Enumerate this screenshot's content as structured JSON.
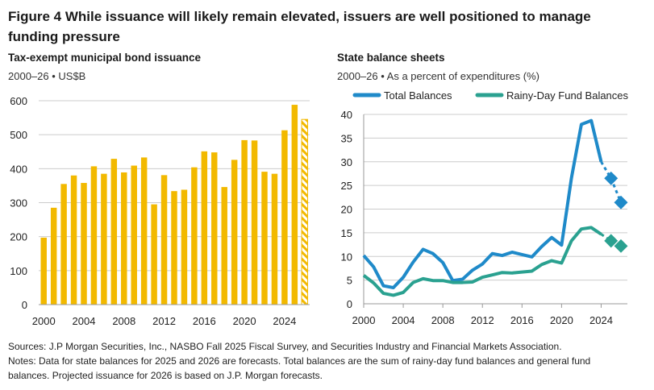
{
  "title": "Figure 4   While issuance will likely remain elevated, issuers are well positioned to manage funding pressure",
  "left": {
    "title": "Tax-exempt municipal bond issuance",
    "subtitle": "2000–26 • US$B"
  },
  "right": {
    "title": "State balance sheets",
    "subtitle": "2000–26 • As a percent of expenditures (%)"
  },
  "chart_data": [
    {
      "type": "bar",
      "years": [
        2000,
        2001,
        2002,
        2003,
        2004,
        2005,
        2006,
        2007,
        2008,
        2009,
        2010,
        2011,
        2012,
        2013,
        2014,
        2015,
        2016,
        2017,
        2018,
        2019,
        2020,
        2021,
        2022,
        2023,
        2024,
        2025,
        2026
      ],
      "values": [
        197,
        285,
        355,
        380,
        358,
        407,
        385,
        429,
        389,
        409,
        433,
        295,
        381,
        334,
        338,
        404,
        451,
        448,
        346,
        426,
        484,
        483,
        391,
        385,
        513,
        588,
        545
      ],
      "forecast_years": [
        2026
      ],
      "ylim": [
        0,
        600
      ],
      "yticks": [
        0,
        100,
        200,
        300,
        400,
        500,
        600
      ],
      "xticks": [
        2000,
        2004,
        2008,
        2012,
        2016,
        2020,
        2024
      ],
      "color": "#f2b900",
      "grid": true
    },
    {
      "type": "line",
      "x": [
        2000,
        2001,
        2002,
        2003,
        2004,
        2005,
        2006,
        2007,
        2008,
        2009,
        2010,
        2011,
        2012,
        2013,
        2014,
        2015,
        2016,
        2017,
        2018,
        2019,
        2020,
        2021,
        2022,
        2023,
        2024,
        2025,
        2026
      ],
      "series": [
        {
          "name": "Total Balances",
          "color": "#1f8ac9",
          "values": [
            10.2,
            7.8,
            3.8,
            3.4,
            5.6,
            8.8,
            11.5,
            10.6,
            8.7,
            4.9,
            5.2,
            7.1,
            8.4,
            10.6,
            10.2,
            10.9,
            10.4,
            9.9,
            12.1,
            14.0,
            12.4,
            26.6,
            37.9,
            38.7,
            30.0,
            26.5,
            21.4
          ]
        },
        {
          "name": "Rainy-Day Fund Balances",
          "color": "#2aa190",
          "values": [
            6.0,
            4.4,
            2.2,
            1.8,
            2.4,
            4.5,
            5.3,
            4.9,
            4.9,
            4.5,
            4.5,
            4.6,
            5.6,
            6.1,
            6.6,
            6.5,
            6.7,
            6.9,
            8.3,
            9.1,
            8.6,
            13.3,
            15.8,
            16.1,
            14.7,
            13.3,
            12.2
          ]
        }
      ],
      "forecast_years": [
        2025,
        2026
      ],
      "ylim": [
        0,
        40
      ],
      "yticks": [
        0,
        5,
        10,
        15,
        20,
        25,
        30,
        35,
        40
      ],
      "xticks": [
        2000,
        2004,
        2008,
        2012,
        2016,
        2020,
        2024
      ],
      "grid": true,
      "legend": "top"
    }
  ],
  "notes": [
    "Sources: J.P Morgan Securities, Inc., NASBO Fall 2025 Fiscal Survey, and Securities Industry and Financial Markets Association.",
    "Notes: Data for state balances for 2025 and 2026 are forecasts. Total balances are the sum of rainy-day fund balances and general fund",
    "balances. Projected issuance for 2026 is based on J.P. Morgan forecasts."
  ]
}
